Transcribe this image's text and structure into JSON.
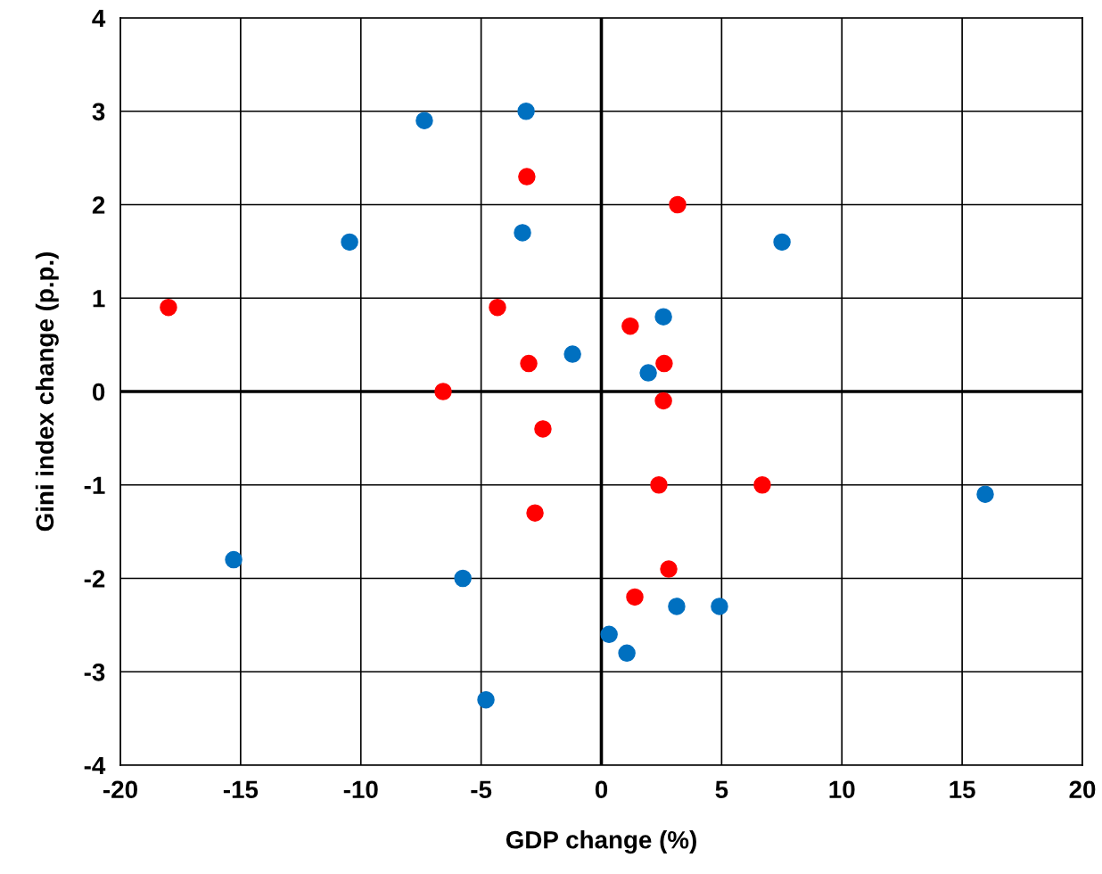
{
  "chart_data": {
    "type": "scatter",
    "xlabel": "GDP change (%)",
    "ylabel": "Gini index change (p.p.)",
    "xlim": [
      -20,
      20
    ],
    "xticks": [
      -20,
      -15,
      -10,
      -5,
      0,
      5,
      10,
      15,
      20
    ],
    "ylim": [
      -4,
      4
    ],
    "yticks": [
      -4,
      -3,
      -2,
      -1,
      0,
      1,
      2,
      3,
      4
    ],
    "grid": true,
    "marker": "circle",
    "series": [
      {
        "color": "#0070c0",
        "x": [
          -7.36,
          -3.13,
          -10.47,
          -3.28,
          7.51,
          2.58,
          -1.2,
          1.95,
          15.96,
          -15.29,
          -5.76,
          3.13,
          4.91,
          0.32,
          1.06,
          -4.8
        ],
        "values": [
          2.9,
          3.0,
          1.6,
          1.7,
          1.6,
          0.8,
          0.4,
          0.2,
          -1.1,
          -1.8,
          -2.0,
          -2.3,
          -2.3,
          -2.6,
          -2.8,
          -3.3
        ]
      },
      {
        "color": "#ff0000",
        "x": [
          -18.0,
          -3.1,
          3.17,
          -4.32,
          1.2,
          -3.02,
          2.61,
          -6.58,
          2.58,
          -2.43,
          2.39,
          6.69,
          -2.76,
          2.8,
          1.39
        ],
        "values": [
          0.9,
          2.3,
          2.0,
          0.9,
          0.7,
          0.3,
          0.3,
          0.0,
          -0.1,
          -0.4,
          -1.0,
          -1.0,
          -1.3,
          -1.9,
          -2.2
        ]
      }
    ]
  }
}
